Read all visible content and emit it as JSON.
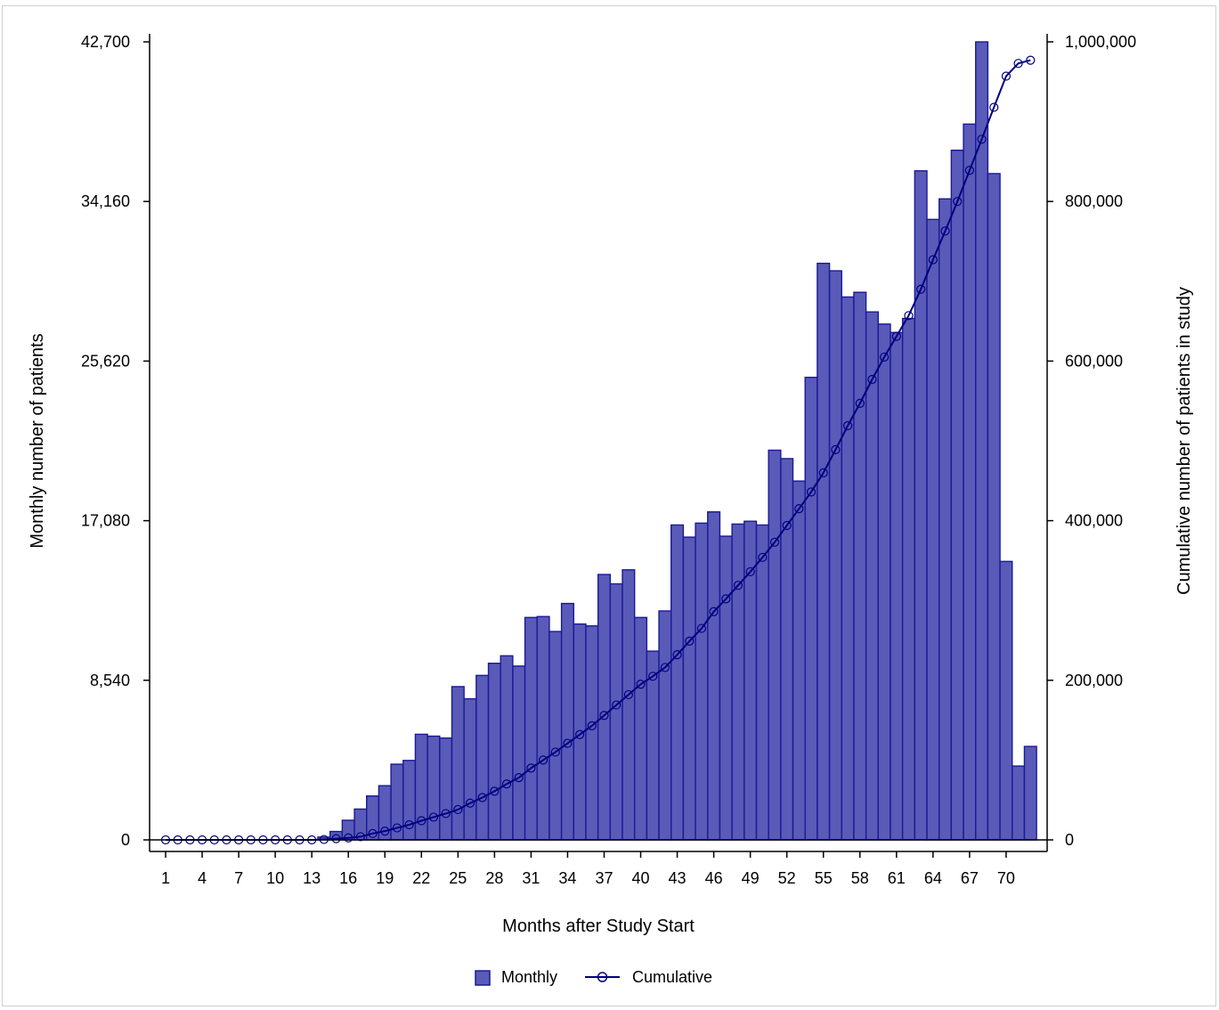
{
  "chart_data": {
    "type": "bar",
    "xlabel": "Months after Study Start",
    "ylabel_left": "Monthly number of patients",
    "ylabel_right": "Cumulative number of patients in study",
    "x_tick_labels": [
      "1",
      "4",
      "7",
      "10",
      "13",
      "16",
      "19",
      "22",
      "25",
      "28",
      "31",
      "34",
      "37",
      "40",
      "43",
      "46",
      "49",
      "52",
      "55",
      "58",
      "61",
      "64",
      "67",
      "70"
    ],
    "y_left_ticks": [
      "0",
      "8,540",
      "17,080",
      "25,620",
      "34,160",
      "42,700"
    ],
    "y_left_tick_values": [
      0,
      8540,
      17080,
      25620,
      34160,
      42700
    ],
    "y_right_ticks": [
      "0",
      "200,000",
      "400,000",
      "600,000",
      "800,000",
      "1,000,000"
    ],
    "y_right_tick_values": [
      0,
      200000,
      400000,
      600000,
      800000,
      1000000
    ],
    "ylim_left": [
      0,
      42700
    ],
    "ylim_right": [
      0,
      1000000
    ],
    "xlim": [
      1,
      73
    ],
    "legend_position": "bottom",
    "colors": {
      "bar_fill": "#5a5ab8",
      "bar_stroke": "#1a1a96",
      "line": "#000080"
    },
    "series": [
      {
        "name": "Monthly",
        "type": "bar",
        "axis": "left",
        "x": [
          1,
          2,
          3,
          4,
          5,
          6,
          7,
          8,
          9,
          10,
          11,
          12,
          13,
          14,
          15,
          16,
          17,
          18,
          19,
          20,
          21,
          22,
          23,
          24,
          25,
          26,
          27,
          28,
          29,
          30,
          31,
          32,
          33,
          34,
          35,
          36,
          37,
          38,
          39,
          40,
          41,
          42,
          43,
          44,
          45,
          46,
          47,
          48,
          49,
          50,
          51,
          52,
          53,
          54,
          55,
          56,
          57,
          58,
          59,
          60,
          61,
          62,
          63,
          64,
          65,
          66,
          67,
          68,
          69,
          70,
          71,
          72
        ],
        "values": [
          0,
          0,
          0,
          0,
          0,
          0,
          0,
          0,
          0,
          0,
          0,
          0,
          0,
          150,
          450,
          1050,
          1650,
          2350,
          2900,
          4050,
          4250,
          5650,
          5550,
          5450,
          8200,
          7550,
          8800,
          9450,
          9850,
          9300,
          11900,
          11950,
          11150,
          12650,
          11550,
          11450,
          14200,
          13700,
          14450,
          11900,
          10100,
          12250,
          16850,
          16200,
          16950,
          17550,
          16250,
          16900,
          17050,
          16850,
          20850,
          20400,
          19200,
          24750,
          30850,
          30450,
          29050,
          29300,
          28250,
          27600,
          27150,
          27900,
          35800,
          33200,
          34300,
          36900,
          38300,
          42700,
          35650,
          14900,
          3950,
          5000
        ]
      },
      {
        "name": "Cumulative",
        "type": "line",
        "axis": "right",
        "x": [
          1,
          2,
          3,
          4,
          5,
          6,
          7,
          8,
          9,
          10,
          11,
          12,
          13,
          14,
          15,
          16,
          17,
          18,
          19,
          20,
          21,
          22,
          23,
          24,
          25,
          26,
          27,
          28,
          29,
          30,
          31,
          32,
          33,
          34,
          35,
          36,
          37,
          38,
          39,
          40,
          41,
          42,
          43,
          44,
          45,
          46,
          47,
          48,
          49,
          50,
          51,
          52,
          53,
          54,
          55,
          56,
          57,
          58,
          59,
          60,
          61,
          62,
          63,
          64,
          65,
          66,
          67,
          68,
          69,
          70,
          71,
          72
        ],
        "values": [
          0,
          0,
          0,
          0,
          0,
          0,
          0,
          0,
          0,
          0,
          0,
          0,
          0,
          500,
          1500,
          2500,
          4000,
          8000,
          11000,
          15000,
          19000,
          24000,
          28500,
          33000,
          38000,
          46000,
          53000,
          61000,
          70000,
          78000,
          90000,
          100000,
          110000,
          121000,
          132000,
          143000,
          156000,
          169000,
          182000,
          195000,
          205000,
          216000,
          232000,
          249000,
          265000,
          286000,
          302000,
          319000,
          336000,
          354000,
          373000,
          394000,
          415000,
          436000,
          460000,
          489000,
          519000,
          547000,
          577000,
          605000,
          631000,
          657000,
          690000,
          727000,
          763000,
          800000,
          839000,
          878000,
          918000,
          957000,
          973000,
          977000
        ]
      }
    ]
  }
}
